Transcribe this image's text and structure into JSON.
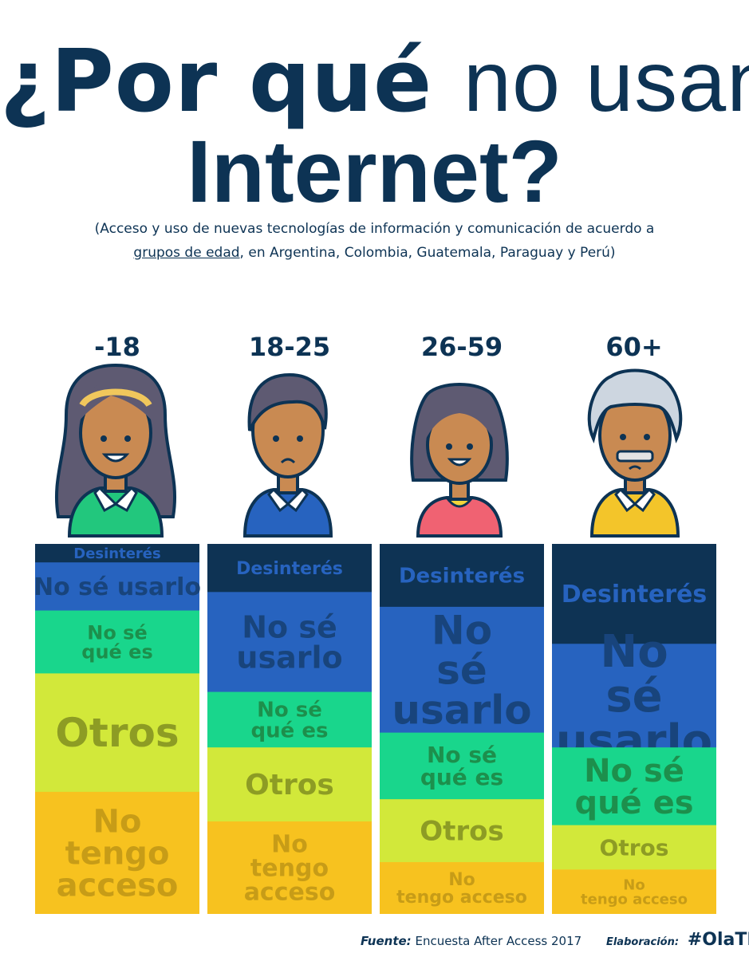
{
  "title": {
    "part1": "¿Por qué",
    "part2": "no usan",
    "part3": "Internet?"
  },
  "subtitle": {
    "line1": "(Acceso y uso de nuevas tecnologías de información y comunicación de acuerdo a",
    "link": "grupos de edad",
    "line2": ", en Argentina, Colombia, Guatemala, Paraguay y Perú)"
  },
  "colors": {
    "Desinterés": "#0e3354",
    "No sé usarlo": "#2763bf",
    "No sé qué es": "#19d68c",
    "Otros": "#d2e83a",
    "No tengo acceso": "#f7c21f"
  },
  "label_colors": {
    "Desinterés": "#2763bf",
    "No sé usarlo": "#18447c",
    "No sé qué es": "#1d8f4c",
    "Otros": "#8d9c24",
    "No tengo acceso": "#c79c17"
  },
  "chart_data": {
    "type": "area",
    "categories": [
      "-18",
      "18-25",
      "26-59",
      "60+"
    ],
    "series": [
      {
        "name": "Desinterés",
        "labels": [
          "Desinterés",
          "Desinterés",
          "Desinterés",
          "Desinterés"
        ],
        "values": [
          5,
          13,
          17,
          27
        ]
      },
      {
        "name": "No sé usarlo",
        "labels": [
          "No sé usarlo",
          "No sé\nusarlo",
          "No\nsé\nusarlo",
          "No\nsé\nusarlo"
        ],
        "values": [
          13,
          27,
          34,
          28
        ]
      },
      {
        "name": "No sé qué es",
        "labels": [
          "No sé\n qué es",
          "No sé\n qué es",
          "No sé\n qué es",
          "No sé\nqué es"
        ],
        "values": [
          17,
          15,
          18,
          21
        ]
      },
      {
        "name": "Otros",
        "labels": [
          "Otros",
          "Otros",
          "Otros",
          "Otros"
        ],
        "values": [
          32,
          20,
          17,
          12
        ]
      },
      {
        "name": "No tengo acceso",
        "labels": [
          "No\ntengo\nacceso",
          "No\ntengo\nacceso",
          "No\ntengo acceso",
          "No\ntengo acceso"
        ],
        "values": [
          33,
          25,
          14,
          12
        ]
      }
    ],
    "ylim": [
      0,
      100
    ]
  },
  "footer": {
    "source_key": "Fuente:",
    "source_value": "Encuesta After Access 2017",
    "credit_key": "Elaboración:",
    "credit_value": "#OlaTICs"
  }
}
